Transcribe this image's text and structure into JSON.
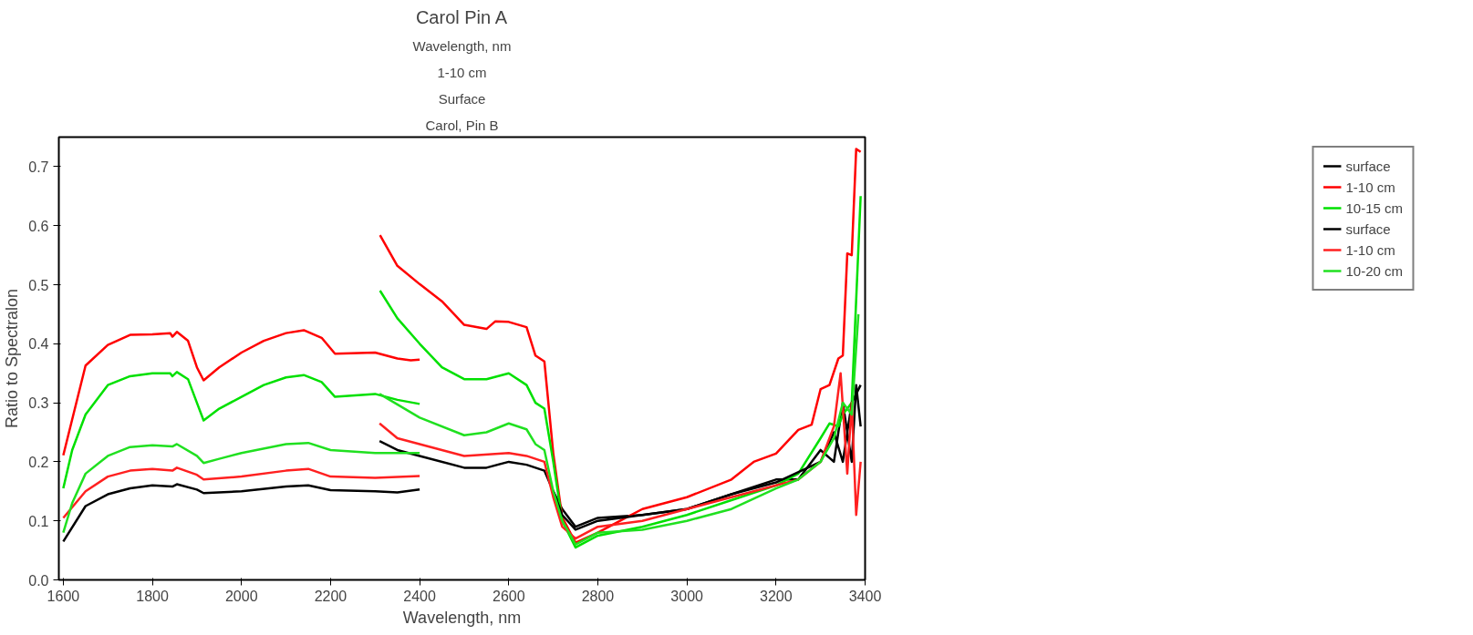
{
  "chart_data": {
    "type": "line",
    "title": "Carol Pin A",
    "xlabel": "Wavelength, nm",
    "ylabel": "Ratio to Spectralon",
    "xlim": [
      1590,
      3400
    ],
    "ylim": [
      0,
      0.75
    ],
    "xticks": [
      1600,
      1800,
      2000,
      2200,
      2400,
      2600,
      2800,
      3000,
      3200,
      3400
    ],
    "yticks": [
      {
        "value": 0,
        "label": "0.0"
      },
      0.1,
      0.2,
      0.3,
      0.4,
      0.5,
      0.6,
      0.7
    ],
    "grid": false,
    "legend": "right",
    "marker": "none",
    "line_style": "solid",
    "annotations": [
      "Carol, Pin B",
      "Surface",
      "1-10 cm",
      "Wavelength, nm"
    ],
    "series": [
      {
        "name": "surface",
        "color": "#000000",
        "x": [
          2700,
          2720,
          2750,
          2800,
          2900,
          3000,
          3100,
          3200,
          3250,
          3300,
          3330,
          3350,
          3370,
          3380,
          3390
        ],
        "values": [
          0.15,
          0.12,
          0.09,
          0.105,
          0.11,
          0.12,
          0.145,
          0.17,
          0.17,
          0.22,
          0.2,
          0.3,
          0.2,
          0.33,
          0.26
        ]
      },
      {
        "name": "1-10 cm",
        "color": "#ff0000",
        "x": [
          1600,
          1650,
          1700,
          1750,
          1800,
          1840,
          1845,
          1855,
          1880,
          1900,
          1915,
          1950,
          2000,
          2050,
          2100,
          2140,
          2180,
          2210,
          2300,
          2350,
          2380,
          2400,
          null,
          2311,
          2350,
          2400,
          2450,
          2500,
          2550,
          2570,
          2600,
          2640,
          2660,
          2680,
          2700,
          2720,
          2750,
          2800,
          2850,
          2900,
          3000,
          3100,
          3150,
          3200,
          3250,
          3280,
          3300,
          3320,
          3340,
          3350,
          3360,
          3370,
          3380,
          3390
        ],
        "values": [
          0.211,
          0.363,
          0.398,
          0.415,
          0.416,
          0.418,
          0.412,
          0.42,
          0.405,
          0.36,
          0.338,
          0.36,
          0.385,
          0.405,
          0.418,
          0.423,
          0.41,
          0.383,
          0.385,
          0.375,
          0.372,
          0.373,
          null,
          0.584,
          0.532,
          0.501,
          0.472,
          0.432,
          0.425,
          0.438,
          0.437,
          0.428,
          0.38,
          0.37,
          0.214,
          0.106,
          0.063,
          0.08,
          0.1,
          0.12,
          0.14,
          0.17,
          0.2,
          0.214,
          0.254,
          0.263,
          0.323,
          0.33,
          0.375,
          0.38,
          0.553,
          0.55,
          0.73,
          0.725
        ]
      },
      {
        "name": "10-15 cm",
        "color": "#00e000",
        "x": [
          1600,
          1620,
          1650,
          1700,
          1750,
          1800,
          1840,
          1845,
          1855,
          1880,
          1900,
          1915,
          1950,
          2000,
          2050,
          2100,
          2140,
          2180,
          2210,
          2300,
          2350,
          2400,
          null,
          2311,
          2350,
          2400,
          2450,
          2500,
          2550,
          2600,
          2640,
          2660,
          2680,
          2700,
          2720,
          2750,
          2800,
          2900,
          3000,
          3100,
          3200,
          3250,
          3300,
          3320,
          3340,
          3350,
          3370,
          3390
        ],
        "values": [
          0.155,
          0.22,
          0.28,
          0.33,
          0.345,
          0.35,
          0.35,
          0.345,
          0.352,
          0.34,
          0.3,
          0.27,
          0.29,
          0.31,
          0.33,
          0.343,
          0.347,
          0.335,
          0.31,
          0.315,
          0.305,
          0.298,
          null,
          0.49,
          0.443,
          0.4,
          0.36,
          0.34,
          0.34,
          0.35,
          0.33,
          0.3,
          0.29,
          0.2,
          0.1,
          0.055,
          0.075,
          0.09,
          0.11,
          0.135,
          0.16,
          0.18,
          0.24,
          0.265,
          0.26,
          0.28,
          0.3,
          0.65
        ]
      },
      {
        "name": "surface",
        "color": "#000000",
        "x": [
          1600,
          1650,
          1700,
          1750,
          1800,
          1845,
          1855,
          1900,
          1915,
          2000,
          2100,
          2150,
          2200,
          2300,
          2350,
          2400,
          null,
          2310,
          2350,
          2400,
          2500,
          2550,
          2600,
          2640,
          2680,
          2700,
          2720,
          2750,
          2800,
          2900,
          3000,
          3100,
          3200,
          3300,
          3330,
          3350,
          3370,
          3390
        ],
        "values": [
          0.065,
          0.125,
          0.145,
          0.155,
          0.16,
          0.158,
          0.162,
          0.153,
          0.147,
          0.15,
          0.158,
          0.16,
          0.152,
          0.15,
          0.148,
          0.153,
          null,
          0.235,
          0.22,
          0.21,
          0.19,
          0.19,
          0.2,
          0.195,
          0.185,
          0.15,
          0.11,
          0.085,
          0.1,
          0.11,
          0.12,
          0.145,
          0.165,
          0.2,
          0.25,
          0.2,
          0.3,
          0.33
        ]
      },
      {
        "name": "1-10 cm",
        "color": "#ff2020",
        "x": [
          1600,
          1650,
          1700,
          1750,
          1800,
          1845,
          1855,
          1900,
          1915,
          2000,
          2100,
          2150,
          2200,
          2300,
          2400,
          null,
          2310,
          2350,
          2400,
          2500,
          2600,
          2640,
          2680,
          2700,
          2720,
          2750,
          2800,
          2900,
          3000,
          3100,
          3200,
          3250,
          3300,
          3330,
          3345,
          3360,
          3370,
          3380,
          3390
        ],
        "values": [
          0.105,
          0.15,
          0.175,
          0.185,
          0.188,
          0.185,
          0.19,
          0.178,
          0.17,
          0.175,
          0.185,
          0.188,
          0.175,
          0.173,
          0.176,
          null,
          0.265,
          0.24,
          0.23,
          0.21,
          0.215,
          0.21,
          0.2,
          0.14,
          0.09,
          0.07,
          0.09,
          0.1,
          0.12,
          0.14,
          0.16,
          0.17,
          0.2,
          0.26,
          0.35,
          0.18,
          0.3,
          0.11,
          0.2
        ]
      },
      {
        "name": "10-20 cm",
        "color": "#20e020",
        "x": [
          1600,
          1620,
          1650,
          1700,
          1750,
          1800,
          1845,
          1855,
          1900,
          1915,
          1950,
          2000,
          2100,
          2150,
          2200,
          2300,
          2400,
          null,
          2310,
          2400,
          2500,
          2550,
          2600,
          2640,
          2660,
          2680,
          2700,
          2720,
          2750,
          2800,
          2900,
          3000,
          3100,
          3200,
          3250,
          3300,
          3330,
          3350,
          3370,
          3385
        ],
        "values": [
          0.08,
          0.13,
          0.18,
          0.21,
          0.225,
          0.228,
          0.226,
          0.23,
          0.21,
          0.198,
          0.205,
          0.215,
          0.23,
          0.232,
          0.22,
          0.215,
          0.215,
          null,
          0.315,
          0.275,
          0.245,
          0.25,
          0.265,
          0.255,
          0.23,
          0.22,
          0.15,
          0.1,
          0.06,
          0.08,
          0.085,
          0.1,
          0.12,
          0.155,
          0.17,
          0.2,
          0.24,
          0.3,
          0.28,
          0.45
        ]
      }
    ]
  }
}
